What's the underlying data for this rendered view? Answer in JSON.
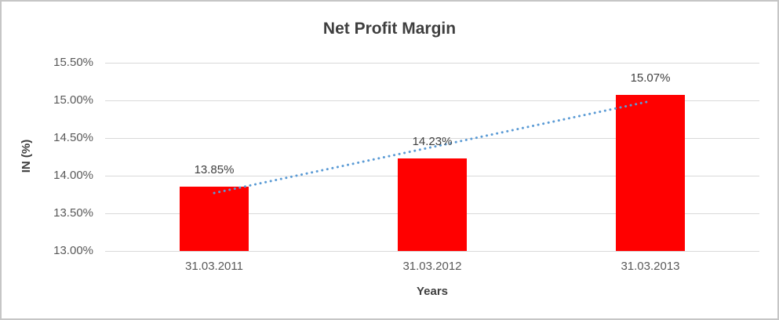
{
  "chart": {
    "title": "Net Profit Margin",
    "xlabel": "Years",
    "ylabel": "IN (%)"
  },
  "chart_data": {
    "type": "bar",
    "title": "Net Profit Margin",
    "xlabel": "Years",
    "ylabel": "IN (%)",
    "categories": [
      "31.03.2011",
      "31.03.2012",
      "31.03.2013"
    ],
    "values": [
      13.85,
      14.23,
      15.07
    ],
    "data_labels": [
      "13.85%",
      "14.23%",
      "15.07%"
    ],
    "ylim": [
      13.0,
      15.5
    ],
    "ytick_step": 0.5,
    "ytick_labels": [
      "13.00%",
      "13.50%",
      "14.00%",
      "14.50%",
      "15.00%",
      "15.50%"
    ],
    "grid": "horizontal",
    "legend": "none",
    "bar_color": "#ff0000",
    "gridline_color": "#d9d9d9",
    "trendline": {
      "type": "linear",
      "style": "dotted",
      "color": "#5b9bd5",
      "fitted": [
        13.77,
        14.38,
        14.99
      ]
    }
  }
}
